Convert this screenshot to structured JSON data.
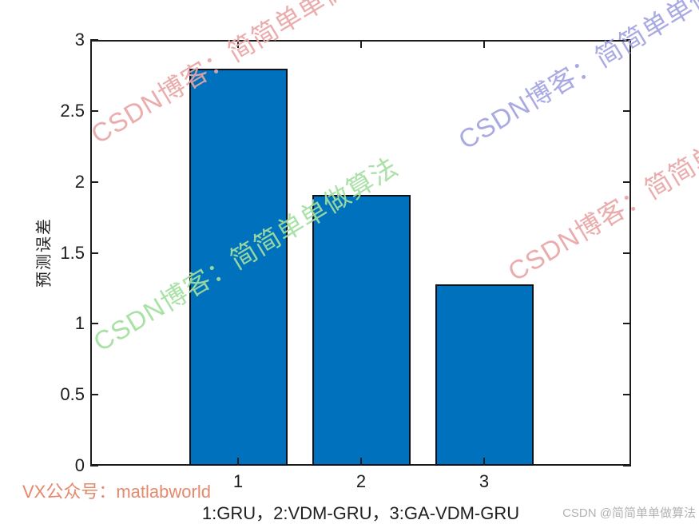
{
  "chart_data": {
    "type": "bar",
    "categories": [
      "1",
      "2",
      "3"
    ],
    "values": [
      2.8,
      1.91,
      1.28
    ],
    "title": "",
    "xlabel": "1:GRU，2:VDM-GRU，3:GA-VDM-GRU",
    "ylabel": "预测误差",
    "ylim": [
      0,
      3
    ],
    "yticks": [
      0,
      0.5,
      1,
      1.5,
      2,
      2.5,
      3
    ],
    "ytick_labels": [
      "0",
      "0.5",
      "1",
      "1.5",
      "2",
      "2.5",
      "3"
    ],
    "xtick_labels": [
      "1",
      "2",
      "3"
    ],
    "bar_color": "#0071BC",
    "bar_edge_color": "#10101A",
    "axis_color": "#1C1C1C",
    "grid": false,
    "legend": null,
    "box": true,
    "tick_direction": "in"
  },
  "watermarks": {
    "items": [
      {
        "text": "CSDN博客：简简单单做算法",
        "color": "#E9A6A6"
      },
      {
        "text": "CSDN博客：简简单单做算法",
        "color": "#A2DFA0"
      },
      {
        "text": "CSDN博客：简简单单做算法",
        "color": "#A2A2E2"
      },
      {
        "text": "CSDN博客：简简单单做算法",
        "color": "#E9A6A6"
      }
    ]
  },
  "footer": {
    "vx_text": "VX公众号：matlabworld",
    "vx_color": "#E5886C",
    "credit_text": "CSDN @简简单单做算法",
    "credit_color": "#B5B2AF"
  }
}
